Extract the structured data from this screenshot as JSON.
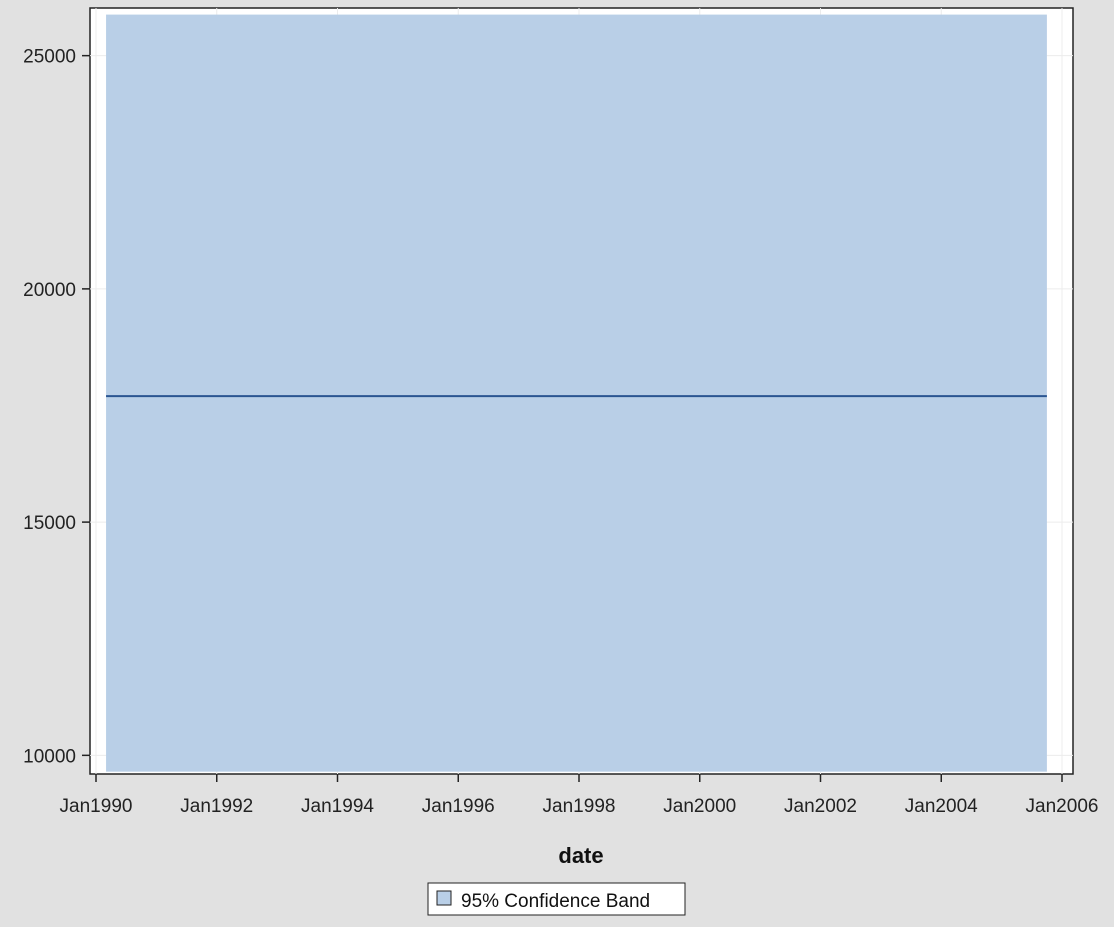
{
  "chart_data": {
    "type": "area",
    "title": "",
    "xlabel": "date",
    "ylabel": "",
    "x_ticks": [
      "Jan1990",
      "Jan1992",
      "Jan1994",
      "Jan1996",
      "Jan1998",
      "Jan2000",
      "Jan2002",
      "Jan2004",
      "Jan2006"
    ],
    "y_ticks": [
      10000,
      15000,
      20000,
      25000
    ],
    "xlim": [
      "1990-01",
      "2006-01"
    ],
    "ylim": [
      9600,
      26000
    ],
    "grid": true,
    "legend_position": "bottom-center",
    "legend": [
      "95% Confidence Band"
    ],
    "band": {
      "name": "95% Confidence Band",
      "x_start": "1990-03",
      "x_end": "2005-10",
      "lower": 9650,
      "upper": 25880,
      "color": "#b9cfe7"
    },
    "line": {
      "x_start": "1990-03",
      "x_end": "2005-10",
      "value": 17700,
      "color": "#2a5591"
    }
  }
}
